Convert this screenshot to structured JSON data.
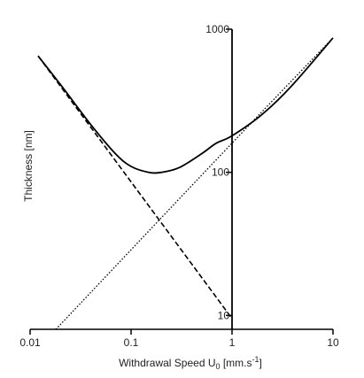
{
  "chart_data": {
    "type": "line",
    "xlabel": "Withdrawal Speed U",
    "xlabel_subscript": "0",
    "xlabel_units": " [mm.s",
    "xlabel_units_superscript": "-1",
    "xlabel_units_close": "]",
    "ylabel": "Thickness [nm]",
    "x_scale": "log",
    "y_scale": "log",
    "xlim": [
      0.01,
      10
    ],
    "ylim": [
      8,
      1000
    ],
    "x_ticks": [
      {
        "value": 0.01,
        "label": "0.01"
      },
      {
        "value": 0.1,
        "label": "0.1"
      },
      {
        "value": 1,
        "label": "1"
      },
      {
        "value": 10,
        "label": "10"
      }
    ],
    "y_ticks": [
      {
        "value": 10,
        "label": "10"
      },
      {
        "value": 100,
        "label": "100"
      },
      {
        "value": 1000,
        "label": "1000"
      }
    ],
    "y_axis_position_x": 1,
    "grid": false,
    "series": [
      {
        "style": "solid",
        "color": "#000000",
        "points": [
          [
            0.012,
            650
          ],
          [
            0.02,
            410
          ],
          [
            0.04,
            215
          ],
          [
            0.07,
            135
          ],
          [
            0.1,
            110
          ],
          [
            0.15,
            100
          ],
          [
            0.2,
            100
          ],
          [
            0.3,
            108
          ],
          [
            0.5,
            135
          ],
          [
            0.7,
            160
          ],
          [
            1,
            180
          ],
          [
            2,
            255
          ],
          [
            4,
            410
          ],
          [
            10,
            870
          ]
        ]
      },
      {
        "style": "dashed",
        "color": "#000000",
        "points": [
          [
            0.012,
            650
          ],
          [
            1,
            9.5
          ]
        ]
      },
      {
        "style": "dotted",
        "color": "#000000",
        "points": [
          [
            0.018,
            8
          ],
          [
            1,
            160
          ],
          [
            10,
            870
          ]
        ]
      }
    ]
  }
}
